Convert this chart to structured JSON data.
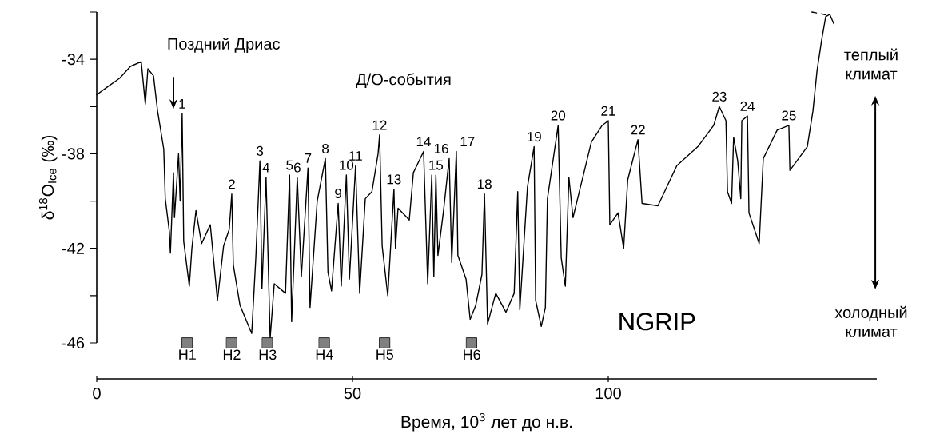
{
  "chart_data": {
    "type": "line",
    "xlabel": "Время, 10$^{3}$ лет до н.в.",
    "ylabel": "δ$^{18}$O$_{Ice}$ (‰)",
    "xlim": [
      0,
      152.5
    ],
    "ylim": [
      -46,
      -32
    ],
    "xticks": [
      0,
      50,
      100
    ],
    "yticks": [
      {
        "value": -32,
        "label": null
      },
      -34,
      {
        "value": -36,
        "label": null
      },
      -38,
      {
        "value": -40,
        "label": null
      },
      -42,
      {
        "value": -44,
        "label": null
      },
      -46
    ],
    "series": [
      {
        "color": "#000000",
        "line_style": "solid",
        "marker": "none",
        "x": [
          0,
          1.9,
          4.5,
          6.6,
          8.7,
          9.5,
          10,
          11.1,
          11.9,
          13.1,
          13.4,
          14.2,
          14.4,
          15,
          15.2,
          16,
          16.3,
          16.7,
          17,
          18.1,
          18.6,
          19.4,
          20.5,
          22.2,
          23.6,
          24.8,
          25.9,
          26.4,
          26.7,
          28,
          30.3,
          31.1,
          31.9,
          32.3,
          33.1,
          33.9,
          34.7,
          36.9,
          37.7,
          38.1,
          39.2,
          40,
          41.3,
          41.7,
          43.1,
          44.7,
          45.2,
          45.9,
          47.2,
          47.8,
          48.8,
          49.4,
          50.6,
          51.4,
          52.5,
          53.8,
          55,
          55.3,
          55.8,
          56.9,
          57.7,
          58.1,
          58.4,
          58.9,
          61.1,
          61.9,
          63.9,
          64.7,
          65.5,
          65.9,
          66.3,
          66.7,
          67.8,
          68.9,
          69.4,
          70.3,
          70.6,
          72.2,
          73,
          74.1,
          75.3,
          75.8,
          76.4,
          78,
          80,
          81.6,
          82.3,
          82.7,
          84.2,
          85.5,
          85.8,
          86.9,
          87.7,
          88.1,
          90.2,
          90.8,
          91.6,
          92.3,
          93.1,
          96.7,
          98.8,
          100,
          100.3,
          101.9,
          103,
          103.8,
          105.8,
          106.6,
          109.7,
          113.4,
          117.5,
          120.6,
          121.7,
          123,
          123.3,
          124.1,
          124.5,
          125.3,
          125.9,
          126.1,
          127.2,
          127.5,
          129.5,
          130.3,
          133,
          135.3,
          135.5,
          138.9,
          140,
          140.8,
          141.7,
          142.5,
          143.3,
          144.1
        ],
        "values": [
          -35.5,
          -35.2,
          -34.8,
          -34.3,
          -34.1,
          -35.9,
          -34.4,
          -34.7,
          -36.2,
          -37.8,
          -39.9,
          -41.3,
          -42.2,
          -38.8,
          -40.7,
          -38,
          -40,
          -36.3,
          -41.7,
          -43.6,
          -42,
          -40.4,
          -41.8,
          -41,
          -44.2,
          -41.9,
          -41.2,
          -39.7,
          -42.7,
          -44.4,
          -45.6,
          -42.4,
          -38.3,
          -43.7,
          -39,
          -45.8,
          -43.5,
          -43.9,
          -38.9,
          -45.1,
          -39,
          -43.2,
          -38.6,
          -44.5,
          -40,
          -38.2,
          -43,
          -43.8,
          -40.1,
          -43.6,
          -38.9,
          -43.3,
          -38.5,
          -43.9,
          -39.9,
          -39.6,
          -38,
          -37.2,
          -41.9,
          -44,
          -41,
          -39.5,
          -42,
          -40.3,
          -40.8,
          -38.8,
          -37.9,
          -43.5,
          -38.9,
          -43.2,
          -38.9,
          -42.3,
          -40.4,
          -38.2,
          -42.6,
          -37.9,
          -42.3,
          -43.3,
          -45,
          -44.4,
          -43.1,
          -39.7,
          -45.2,
          -43.9,
          -44.7,
          -43.9,
          -39.6,
          -44.6,
          -39.4,
          -37.7,
          -44.2,
          -45.3,
          -44.5,
          -39.9,
          -36.8,
          -42.4,
          -43.6,
          -39,
          -40.7,
          -37.5,
          -36.8,
          -36.6,
          -41,
          -40.5,
          -42,
          -39.1,
          -37.4,
          -40.1,
          -40.2,
          -38.5,
          -37.7,
          -36.8,
          -36,
          -36.6,
          -39.6,
          -40.1,
          -37.3,
          -38.3,
          -39.9,
          -36.6,
          -36.4,
          -40.5,
          -41.8,
          -38.2,
          -37,
          -36.8,
          -38.7,
          -37.7,
          -36.2,
          -34.5,
          -33.2,
          -32.2,
          -32.1,
          -32.5
        ]
      },
      {
        "color": "#000000",
        "line_style": "dashed",
        "marker": "none",
        "x": [
          139.8,
          143.3
        ],
        "values": [
          -32.0,
          -32.15
        ]
      },
      {
        "type": "scatter",
        "color": "#808080",
        "marker": "square",
        "x": [
          17.7,
          26.4,
          33.4,
          44.5,
          56.3,
          73.3
        ],
        "values": [
          -46,
          -46,
          -46,
          -46,
          -46,
          -46
        ],
        "value_labels": [
          "H1",
          "H2",
          "H3",
          "H4",
          "H5",
          "H6"
        ]
      }
    ],
    "annotations": [
      "Поздний Дриас",
      "Д/О-события",
      {
        "text": "1",
        "x": 16.7,
        "y": -36.3
      },
      {
        "text": "2",
        "x": 26.4,
        "y": -39.7
      },
      {
        "text": "3",
        "x": 31.9,
        "y": -38.3
      },
      {
        "text": "4",
        "x": 33.1,
        "y": -39
      },
      {
        "text": "5",
        "x": 37.7,
        "y": -38.9
      },
      {
        "text": "6",
        "x": 39.2,
        "y": -39
      },
      {
        "text": "7",
        "x": 41.3,
        "y": -38.6
      },
      {
        "text": "8",
        "x": 44.7,
        "y": -38.2
      },
      {
        "text": "9",
        "x": 47.2,
        "y": -40.1
      },
      {
        "text": "10",
        "x": 48.8,
        "y": -38.9
      },
      {
        "text": "11",
        "x": 50.6,
        "y": -38.5
      },
      {
        "text": "12",
        "x": 55.3,
        "y": -37.2
      },
      {
        "text": "13",
        "x": 58.1,
        "y": -39.5
      },
      {
        "text": "14",
        "x": 63.9,
        "y": -37.9
      },
      {
        "text": "15",
        "x": 66.3,
        "y": -38.9
      },
      {
        "text": "16",
        "x": 68.9,
        "y": -38.2
      },
      {
        "text": "17",
        "x": 70.3,
        "y": -37.9
      },
      {
        "text": "18",
        "x": 75.8,
        "y": -39.7
      },
      {
        "text": "19",
        "x": 85.5,
        "y": -37.7
      },
      {
        "text": "20",
        "x": 90.2,
        "y": -36.8
      },
      {
        "text": "21",
        "x": 100,
        "y": -36.6
      },
      {
        "text": "22",
        "x": 105.8,
        "y": -37.4
      },
      {
        "text": "23",
        "x": 121.7,
        "y": -36.0
      },
      {
        "text": "24",
        "x": 127.2,
        "y": -36.4
      },
      {
        "text": "25",
        "x": 135.3,
        "y": -36.8
      },
      "NGRIP",
      "теплый климат",
      "холодный климат"
    ]
  }
}
